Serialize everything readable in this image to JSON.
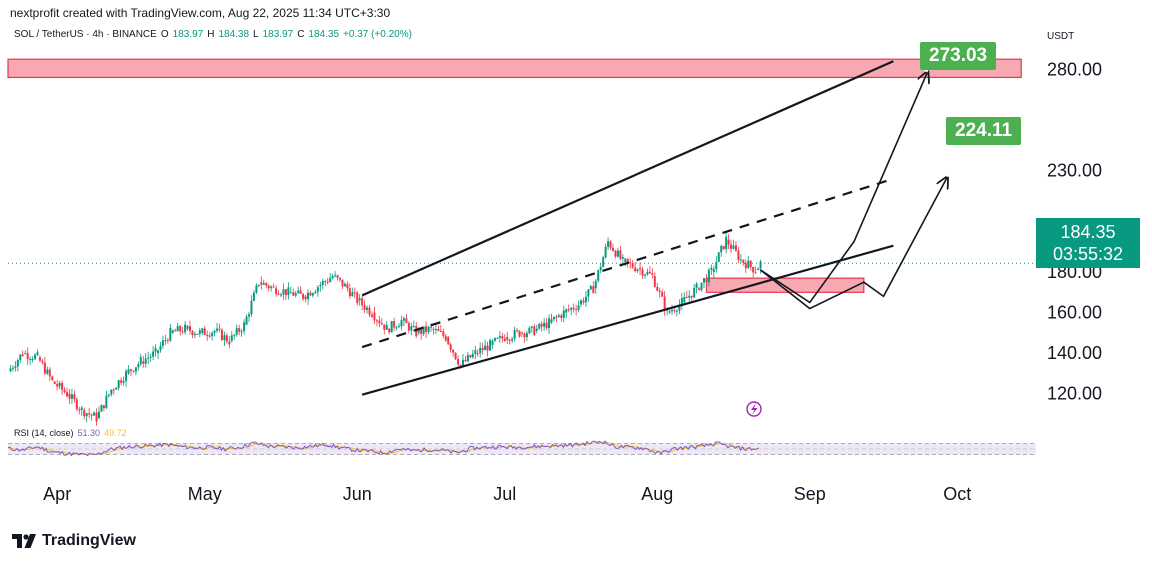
{
  "header": {
    "credit": "nextprofit created with TradingView.com, Aug 22, 2025 11:34 UTC+3:30"
  },
  "symbol_info": {
    "symbol": "SOL / TetherUS · 4h · BINANCE",
    "open_label": "O",
    "open": "183.97",
    "high_label": "H",
    "high": "184.38",
    "low_label": "L",
    "low": "183.97",
    "close_label": "C",
    "close": "184.35",
    "change": "+0.37 (+0.20%)"
  },
  "currency": "USDT",
  "price_badge": {
    "price": "184.35",
    "countdown": "03:55:32"
  },
  "targets": [
    {
      "value": "273.03"
    },
    {
      "value": "224.11"
    }
  ],
  "rsi": {
    "label": "RSI (14, close)",
    "value1": "51.30",
    "value2": "49.72"
  },
  "footer": {
    "logo_text": "TradingView"
  },
  "colors": {
    "up_candle": "#089981",
    "down_candle": "#f23645",
    "zone_fill": "#f7a8b0",
    "zone_stroke": "#e53950",
    "target_bg": "#4caf50",
    "rsi_line": "#7e57c2",
    "rsi_ma": "#f7c32e",
    "rsi_band": "#ede7f6"
  },
  "chart_data": {
    "type": "line",
    "title": "SOL / TetherUS · 4h · BINANCE",
    "ylim": [
      108,
      292
    ],
    "y_ticks": [
      120,
      140,
      160,
      180,
      230,
      280
    ],
    "y_tick_labels": [
      "120.00",
      "140.00",
      "160.00",
      "180.00",
      "230.00",
      "280.00"
    ],
    "x_tick_labels": [
      "Apr",
      "May",
      "Jun",
      "Jul",
      "Aug",
      "Sep",
      "Oct"
    ],
    "x_tick_dates": [
      "2025-04-01",
      "2025-05-01",
      "2025-06-01",
      "2025-07-01",
      "2025-08-01",
      "2025-09-01",
      "2025-10-01"
    ],
    "x_range": [
      "2025-03-22",
      "2025-10-17"
    ],
    "series": [
      {
        "values": [
          [
            "2025-03-22",
            131
          ],
          [
            "2025-03-25",
            140
          ],
          [
            "2025-03-28",
            138
          ],
          [
            "2025-03-31",
            126
          ],
          [
            "2025-04-03",
            120
          ],
          [
            "2025-04-06",
            112
          ],
          [
            "2025-04-09",
            108
          ],
          [
            "2025-04-12",
            122
          ],
          [
            "2025-04-15",
            130
          ],
          [
            "2025-04-18",
            136
          ],
          [
            "2025-04-21",
            140
          ],
          [
            "2025-04-24",
            150
          ],
          [
            "2025-04-27",
            152
          ],
          [
            "2025-04-30",
            150
          ],
          [
            "2025-05-03",
            151
          ],
          [
            "2025-05-06",
            146
          ],
          [
            "2025-05-09",
            154
          ],
          [
            "2025-05-12",
            175
          ],
          [
            "2025-05-15",
            172
          ],
          [
            "2025-05-18",
            170
          ],
          [
            "2025-05-21",
            168
          ],
          [
            "2025-05-24",
            173
          ],
          [
            "2025-05-27",
            178
          ],
          [
            "2025-05-30",
            172
          ],
          [
            "2025-06-01",
            166
          ],
          [
            "2025-06-04",
            160
          ],
          [
            "2025-06-07",
            152
          ],
          [
            "2025-06-10",
            156
          ],
          [
            "2025-06-13",
            150
          ],
          [
            "2025-06-16",
            152
          ],
          [
            "2025-06-19",
            148
          ],
          [
            "2025-06-22",
            134
          ],
          [
            "2025-06-25",
            140
          ],
          [
            "2025-06-28",
            144
          ],
          [
            "2025-07-01",
            148
          ],
          [
            "2025-07-04",
            150
          ],
          [
            "2025-07-07",
            151
          ],
          [
            "2025-07-10",
            155
          ],
          [
            "2025-07-13",
            160
          ],
          [
            "2025-07-16",
            164
          ],
          [
            "2025-07-19",
            172
          ],
          [
            "2025-07-22",
            195
          ],
          [
            "2025-07-25",
            185
          ],
          [
            "2025-07-28",
            182
          ],
          [
            "2025-07-31",
            178
          ],
          [
            "2025-08-03",
            160
          ],
          [
            "2025-08-06",
            165
          ],
          [
            "2025-08-09",
            172
          ],
          [
            "2025-08-12",
            180
          ],
          [
            "2025-08-15",
            196
          ],
          [
            "2025-08-18",
            186
          ],
          [
            "2025-08-21",
            181
          ],
          [
            "2025-08-22",
            184.35
          ]
        ]
      }
    ],
    "rsi": {
      "range": [
        0,
        100
      ],
      "bands": [
        30,
        70
      ],
      "values": [
        52,
        46,
        58,
        40,
        34,
        30,
        28,
        48,
        56,
        60,
        62,
        66,
        58,
        54,
        56,
        50,
        56,
        72,
        60,
        58,
        54,
        60,
        66,
        54,
        46,
        42,
        36,
        50,
        44,
        48,
        46,
        36,
        52,
        56,
        58,
        56,
        58,
        60,
        62,
        64,
        70,
        78,
        58,
        56,
        52,
        34,
        50,
        56,
        60,
        70,
        56,
        50,
        51
      ]
    },
    "annotations": {
      "channel_upper": [
        [
          "2025-06-02",
          168.5
        ],
        [
          "2025-09-18",
          284
        ]
      ],
      "channel_mid": [
        [
          "2025-06-02",
          143
        ],
        [
          "2025-09-18",
          226
        ]
      ],
      "channel_lower": [
        [
          "2025-06-02",
          119.5
        ],
        [
          "2025-09-18",
          193
        ]
      ],
      "resistance_zone": {
        "x": [
          "2025-03-22",
          "2025-10-14"
        ],
        "y": [
          276,
          285
        ]
      },
      "support_zone": {
        "x": [
          "2025-08-11",
          "2025-09-12"
        ],
        "y": [
          170,
          177
        ]
      },
      "projection_a": [
        [
          "2025-08-22",
          181
        ],
        [
          "2025-09-01",
          165
        ],
        [
          "2025-09-10",
          195
        ],
        [
          "2025-09-25",
          279
        ]
      ],
      "projection_b": [
        [
          "2025-08-22",
          181
        ],
        [
          "2025-09-01",
          162
        ],
        [
          "2025-09-12",
          175
        ],
        [
          "2025-09-16",
          168
        ],
        [
          "2025-09-29",
          227
        ]
      ]
    },
    "grid": false,
    "legend": "none"
  }
}
